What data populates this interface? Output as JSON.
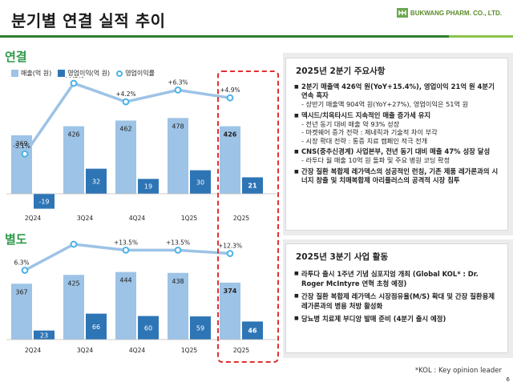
{
  "header": {
    "title": "분기별 연결 실적 추이",
    "logo_text": "BUKWANG PHARM. CO., LTD."
  },
  "colors": {
    "revenue_bar": "#9dc3e6",
    "op_income_bar": "#2e75b6",
    "op_margin_line": "#9dc3e6",
    "op_margin_marker": "#4ab3e6",
    "section_label": "#2f9a4a",
    "highlight_box": "#e03030"
  },
  "legend": {
    "revenue": "매출(억 원)",
    "op_income": "영업이익(억 원)",
    "op_margin": "영업이익률"
  },
  "chart_data": [
    {
      "type": "bar",
      "segment_label": "연결",
      "categories": [
        "2Q24",
        "3Q24",
        "4Q24",
        "1Q25",
        "2Q25"
      ],
      "series": [
        {
          "name": "매출(억 원)",
          "values": [
            369,
            426,
            462,
            478,
            426
          ]
        },
        {
          "name": "영업이익(억 원)",
          "values": [
            -19,
            32,
            19,
            30,
            21
          ]
        },
        {
          "name": "영업이익률",
          "type": "line",
          "values": [
            "-5.1%",
            "+7.5%",
            "+4.2%",
            "+6.3%",
            "+4.9%"
          ],
          "numeric": [
            -5.1,
            7.5,
            4.2,
            6.3,
            4.9
          ]
        }
      ],
      "highlight_category": "2Q25"
    },
    {
      "type": "bar",
      "segment_label": "별도",
      "categories": [
        "2Q24",
        "3Q24",
        "4Q24",
        "1Q25",
        "2Q25"
      ],
      "series": [
        {
          "name": "매출(억 원)",
          "values": [
            367,
            425,
            444,
            438,
            374
          ]
        },
        {
          "name": "영업이익(억 원)",
          "values": [
            23,
            66,
            60,
            59,
            46
          ]
        },
        {
          "name": "영업이익률",
          "type": "line",
          "values": [
            "6.3%",
            "+15.6%",
            "+13.5%",
            "+13.5%",
            "+12.3%"
          ],
          "numeric": [
            6.3,
            15.6,
            13.5,
            13.5,
            12.3
          ]
        }
      ],
      "highlight_category": "2Q25"
    }
  ],
  "panel1": {
    "title": "2025년 2분기 주요사항",
    "items": [
      {
        "main": "2분기 매출액 426억 원(YoY+15.4%), 영업이익 21억 원 4분기 연속 흑자",
        "subs": [
          "- 상반기 매출액 904억 원(YoY+27%), 영업이익은 51억 원"
        ]
      },
      {
        "main": "덱시드/치옥타시드 지속적인 매출 증가세 유지",
        "subs": [
          "- 전년 동기 대비 매출 약 93% 성장",
          "- 마켓쉐어 증가 전략 : 제네릭과 기술적 차이 부각",
          "- 시장 확대 전략 : 통증 치료 캠페인 적극 전개"
        ]
      },
      {
        "main": "CNS(중추신경계) 사업본부, 전년 동기 대비 매출 47% 성장 달성",
        "subs": [
          "- 라투다 월 매출 10억 원 돌파 및 주요 병원 코딩 확정"
        ]
      },
      {
        "main": "간장 질환 복합제 레가덱스의 성공적인 런칭, 기존 제품 레가론과의 시너지 창출 및 치매복합제 아리플러스의 공격적 시장 침투",
        "subs": []
      }
    ]
  },
  "panel2": {
    "title": "2025년 3분기 사업 활동",
    "items": [
      {
        "main": "라투다 출시 1주년 기념 심포지엄 개최 (Global KOL* : Dr. Roger McIntyre 연혁 초청 예정)"
      },
      {
        "main": "간장 질환 복합제 레가덱스 시장점유율(M/S) 확대 및 간장 질환용제 레가론과의 병용 처방 활성화"
      },
      {
        "main": "당뇨병 치료제 부디앙 발매 준비 (4분기 출시 예정)"
      }
    ]
  },
  "footnote": "*KOL : Key opinion leader",
  "page_number": "6"
}
